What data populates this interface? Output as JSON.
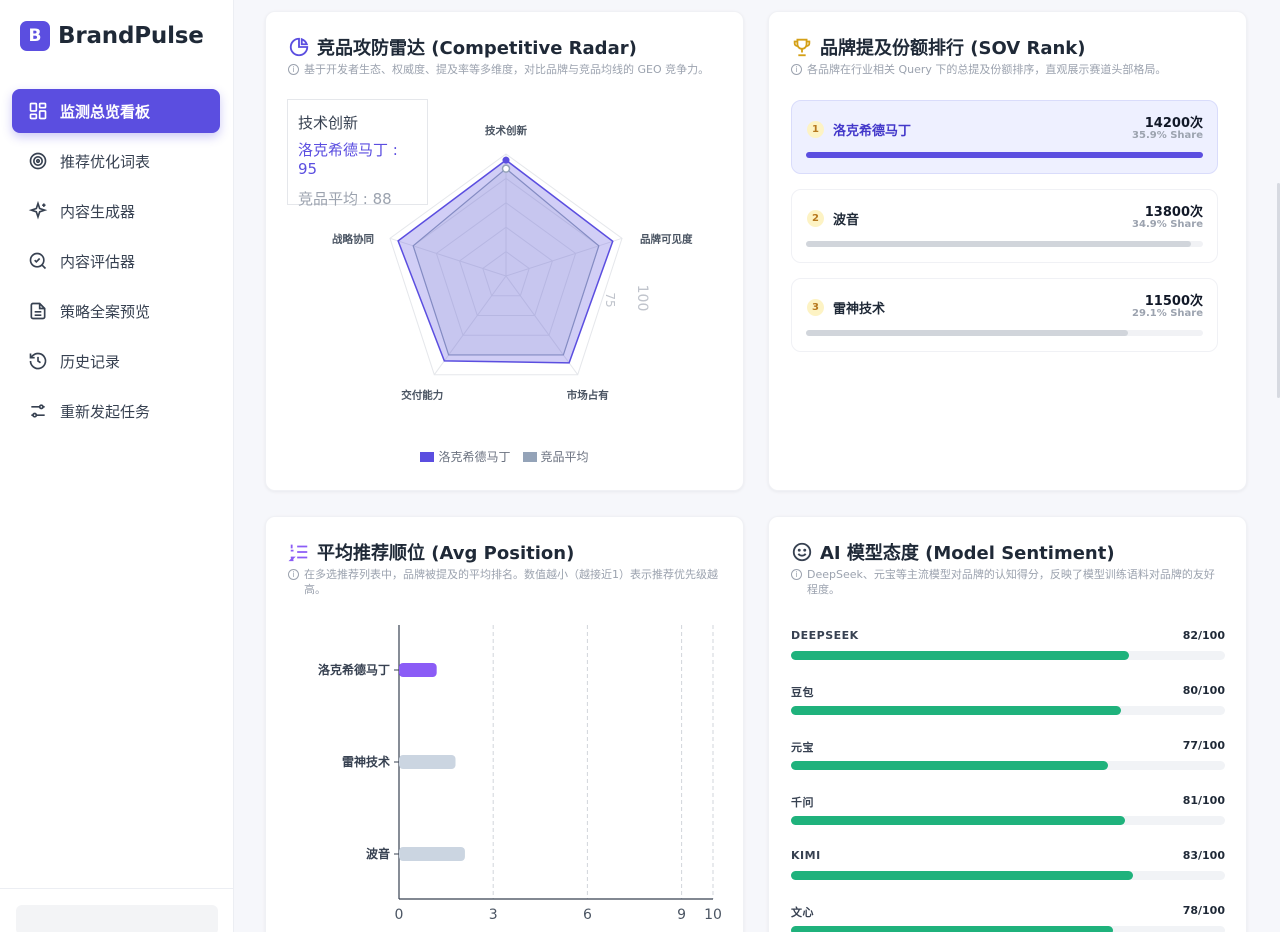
{
  "brand": {
    "logo": "B",
    "name": "BrandPulse"
  },
  "nav": [
    {
      "label": "监测总览看板",
      "icon": "dashboard-icon",
      "active": true
    },
    {
      "label": "推荐优化词表",
      "icon": "target-icon",
      "active": false
    },
    {
      "label": "内容生成器",
      "icon": "sparkles-icon",
      "active": false
    },
    {
      "label": "内容评估器",
      "icon": "check-circle-icon",
      "active": false
    },
    {
      "label": "策略全案预览",
      "icon": "file-text-icon",
      "active": false
    },
    {
      "label": "历史记录",
      "icon": "history-icon",
      "active": false
    },
    {
      "label": "重新发起任务",
      "icon": "sliders-icon",
      "active": false
    }
  ],
  "radar": {
    "title": "竞品攻防雷达 (Competitive Radar)",
    "desc": "基于开发者生态、权威度、提及率等多维度，对比品牌与竞品均线的 GEO 竞争力。",
    "tooltip": {
      "title": "技术创新",
      "row1": "洛克希德马丁 : 95",
      "row2": "竞品平均 : 88"
    },
    "legend": [
      {
        "name": "洛克希德马丁",
        "color": "#5b4ee0"
      },
      {
        "name": "竞品平均",
        "color": "#94a3b8"
      }
    ],
    "ticks": [
      "75",
      "100"
    ]
  },
  "chart_data": [
    {
      "type": "radar",
      "title": "竞品攻防雷达 (Competitive Radar)",
      "indicators": [
        "技术创新",
        "品牌可见度",
        "市场占有",
        "交付能力",
        "战略协同"
      ],
      "max": 100,
      "series": [
        {
          "name": "洛克希德马丁",
          "values": [
            95,
            92,
            88,
            86,
            93
          ]
        },
        {
          "name": "竞品平均",
          "values": [
            88,
            80,
            80,
            80,
            80
          ]
        }
      ]
    },
    {
      "type": "bar",
      "orientation": "horizontal",
      "title": "平均推荐顺位 (Avg Position)",
      "categories": [
        "洛克希德马丁",
        "雷神技术",
        "波音"
      ],
      "values": [
        1.2,
        1.8,
        2.1
      ],
      "xlim": [
        0,
        10
      ],
      "xticks": [
        0,
        3,
        6,
        9,
        10
      ]
    }
  ],
  "avg_position": {
    "title": "平均推荐顺位 (Avg Position)",
    "desc": "在多选推荐列表中，品牌被提及的平均排名。数值越小（越接近1）表示推荐优先级越高。",
    "highlight_color": "#8b5cf6",
    "other_color": "#cbd5e1"
  },
  "sov": {
    "title": "品牌提及份额排行 (SOV Rank)",
    "desc": "各品牌在行业相关 Query 下的总提及份额排序，直观展示赛道头部格局。",
    "items": [
      {
        "rank": "1",
        "name": "洛克希德马丁",
        "count": "14200次",
        "share": "35.9% Share",
        "pct": 100
      },
      {
        "rank": "2",
        "name": "波音",
        "count": "13800次",
        "share": "34.9% Share",
        "pct": 97
      },
      {
        "rank": "3",
        "name": "雷神技术",
        "count": "11500次",
        "share": "29.1% Share",
        "pct": 81
      }
    ]
  },
  "sentiment": {
    "title": "AI 模型态度 (Model Sentiment)",
    "desc": "DeepSeek、元宝等主流模型对品牌的认知得分，反映了模型训练语料对品牌的友好程度。",
    "items": [
      {
        "name": "DEEPSEEK",
        "score": "82/100",
        "value": 82
      },
      {
        "name": "豆包",
        "score": "80/100",
        "value": 80
      },
      {
        "name": "元宝",
        "score": "77/100",
        "value": 77
      },
      {
        "name": "千问",
        "score": "81/100",
        "value": 81
      },
      {
        "name": "KIMI",
        "score": "83/100",
        "value": 83
      },
      {
        "name": "文心",
        "score": "78/100",
        "value": 78
      }
    ]
  }
}
